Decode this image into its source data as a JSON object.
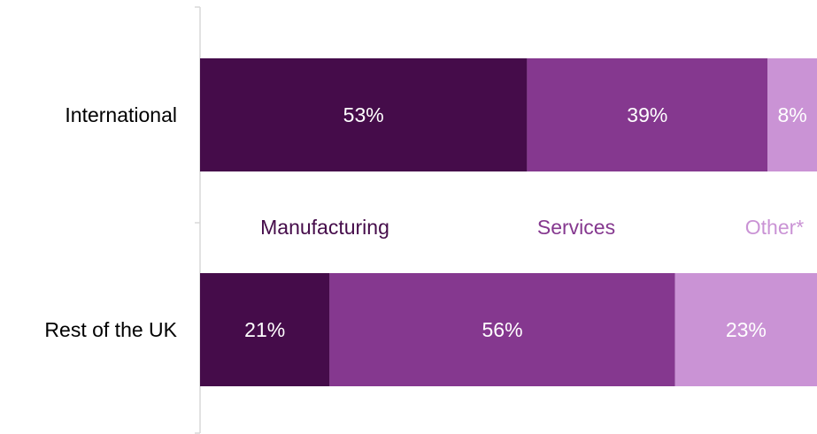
{
  "chart_data": {
    "type": "bar",
    "orientation": "horizontal",
    "stacked": "percent",
    "title": "",
    "xlabel": "",
    "ylabel": "",
    "categories": [
      "International",
      "Rest of the UK"
    ],
    "series": [
      {
        "name": "Manufacturing",
        "values": [
          53,
          21
        ],
        "labels": [
          "53%",
          "21%"
        ],
        "color": "#450c4a"
      },
      {
        "name": "Services",
        "values": [
          39,
          56
        ],
        "labels": [
          "39%",
          "56%"
        ],
        "color": "#85388f"
      },
      {
        "name": "Other*",
        "values": [
          8,
          23
        ],
        "labels": [
          "8%",
          "23%"
        ],
        "color": "#ca93d5"
      }
    ],
    "xlim": [
      0,
      100
    ],
    "grid": false,
    "legend": "between-bars"
  }
}
